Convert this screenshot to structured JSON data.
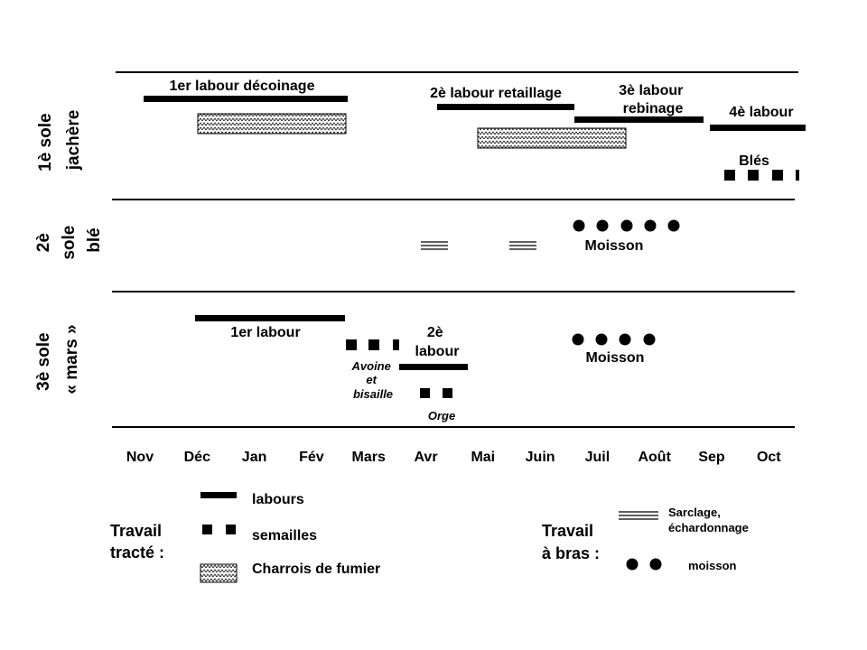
{
  "rows": [
    {
      "lines": [
        "1è sole",
        "jachère"
      ]
    },
    {
      "lines": [
        "2è",
        "sole",
        "blé"
      ]
    },
    {
      "lines": [
        "3è sole",
        "« mars »"
      ]
    }
  ],
  "months": [
    "Nov",
    "Déc",
    "Jan",
    "Fév",
    "Mars",
    "Avr",
    "Mai",
    "Juin",
    "Juil",
    "Août",
    "Sep",
    "Oct"
  ],
  "row1": {
    "labour1": "1er labour décoinage",
    "labour2": "2è labour retaillage",
    "labour3": [
      "3è labour",
      "rebinage"
    ],
    "labour4": "4è labour",
    "bles": "Blés"
  },
  "row2": {
    "moisson": "Moisson"
  },
  "row3": {
    "labour1": "1er labour",
    "labour2": [
      "2è",
      "labour"
    ],
    "avoine": [
      "Avoine",
      "et",
      "bisaille"
    ],
    "orge": "Orge",
    "moisson": "Moisson"
  },
  "legend": {
    "tracte_title": [
      "Travail",
      "tracté :"
    ],
    "labours": "labours",
    "semailles": "semailles",
    "fumier": "Charrois de fumier",
    "bras_title": [
      "Travail",
      "à bras :"
    ],
    "sarclage": [
      "Sarclage,",
      "échardonnage"
    ],
    "moisson": "moisson"
  }
}
